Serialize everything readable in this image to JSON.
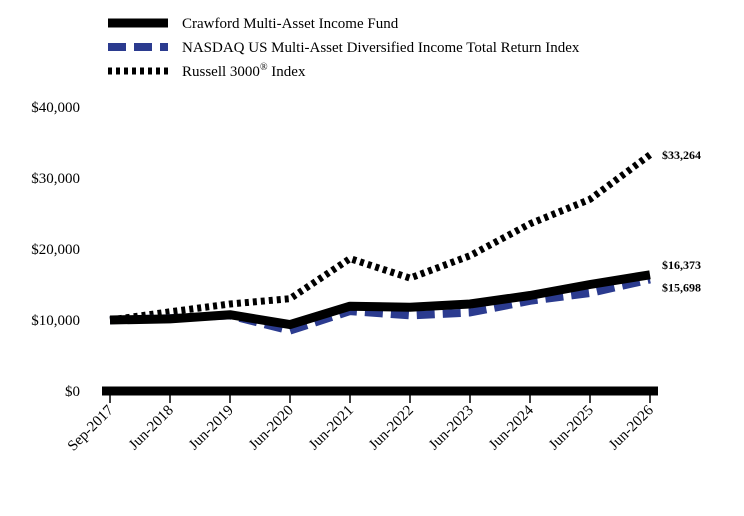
{
  "chart_data": {
    "type": "line",
    "title": "",
    "xlabel": "",
    "ylabel": "",
    "x": [
      "Sep-2017",
      "Jun-2018",
      "Jun-2019",
      "Jun-2020",
      "Jun-2021",
      "Jun-2022",
      "Jun-2023",
      "Jun-2024",
      "Jun-2025",
      "Jun-2026"
    ],
    "ylim": [
      0,
      40000
    ],
    "yticks": [
      0,
      10000,
      20000,
      30000,
      40000
    ],
    "ytick_labels": [
      "$0",
      "$10,000",
      "$20,000",
      "$30,000",
      "$40,000"
    ],
    "grid": false,
    "legend_position": "top-left",
    "series": [
      {
        "name": "Crawford Multi-Asset Income Fund",
        "style": "solid",
        "color": "#000000",
        "values": [
          10000,
          10150,
          10750,
          9350,
          11950,
          11800,
          12250,
          13450,
          15000,
          16373
        ],
        "end_label": "$16,373"
      },
      {
        "name": "NASDAQ US Multi-Asset Diversified Income Total Return Index",
        "style": "dashed",
        "color": "#2b3b8f",
        "values": [
          10000,
          10250,
          10650,
          8500,
          11250,
          10650,
          11050,
          12700,
          13800,
          15698
        ],
        "end_label": "$15,698"
      },
      {
        "name": "Russell 3000® Index",
        "style": "dotted",
        "color": "#000000",
        "values": [
          10000,
          11150,
          12250,
          13000,
          18650,
          15900,
          19050,
          23550,
          27000,
          33264
        ],
        "end_label": "$33,264"
      }
    ]
  }
}
